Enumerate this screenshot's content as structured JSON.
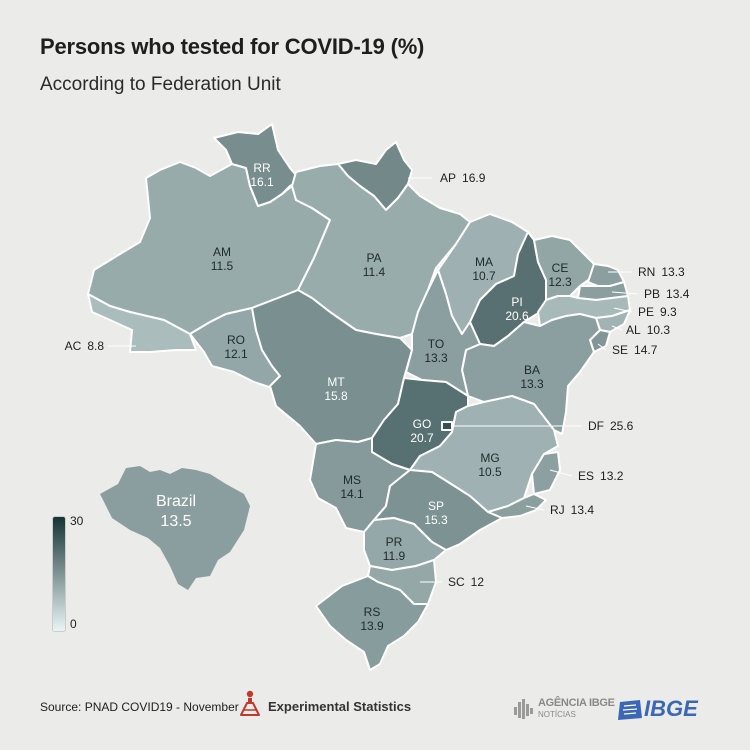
{
  "title": "Persons who tested for COVID-19 (%)",
  "subtitle": "According to Federation Unit",
  "colors": {
    "min": "#e9f5f5",
    "max": "#163435",
    "background": "#ebebea"
  },
  "legend": {
    "max_label": "30",
    "min_label": "0",
    "max": 30,
    "min": 0
  },
  "national": {
    "name": "Brazil",
    "value": "13.5"
  },
  "states": [
    {
      "uf": "RR",
      "value": "16.1"
    },
    {
      "uf": "AP",
      "value": "16.9"
    },
    {
      "uf": "AM",
      "value": "11.5"
    },
    {
      "uf": "PA",
      "value": "11.4"
    },
    {
      "uf": "MA",
      "value": "10.7"
    },
    {
      "uf": "CE",
      "value": "12.3"
    },
    {
      "uf": "RN",
      "value": "13.3"
    },
    {
      "uf": "PB",
      "value": "13.4"
    },
    {
      "uf": "PE",
      "value": "9.3"
    },
    {
      "uf": "AL",
      "value": "10.3"
    },
    {
      "uf": "SE",
      "value": "14.7"
    },
    {
      "uf": "PI",
      "value": "20.6"
    },
    {
      "uf": "AC",
      "value": "8.8"
    },
    {
      "uf": "RO",
      "value": "12.1"
    },
    {
      "uf": "TO",
      "value": "13.3"
    },
    {
      "uf": "BA",
      "value": "13.3"
    },
    {
      "uf": "MT",
      "value": "15.8"
    },
    {
      "uf": "GO",
      "value": "20.7"
    },
    {
      "uf": "DF",
      "value": "25.6"
    },
    {
      "uf": "MG",
      "value": "10.5"
    },
    {
      "uf": "ES",
      "value": "13.2"
    },
    {
      "uf": "MS",
      "value": "14.1"
    },
    {
      "uf": "SP",
      "value": "15.3"
    },
    {
      "uf": "RJ",
      "value": "13.4"
    },
    {
      "uf": "PR",
      "value": "11.9"
    },
    {
      "uf": "SC",
      "value": "12"
    },
    {
      "uf": "RS",
      "value": "13.9"
    }
  ],
  "footer": {
    "source": "Source: PNAD COVID19 - November",
    "experimental": "Experimental Statistics",
    "agencia_name": "AGÊNCIA IBGE",
    "agencia_sub": "NOTÍCIAS",
    "ibge": "IBGE"
  },
  "icons": {
    "experimental": "flask-icon",
    "agencia": "agencia-logo-icon",
    "ibge": "ibge-logo-icon"
  }
}
